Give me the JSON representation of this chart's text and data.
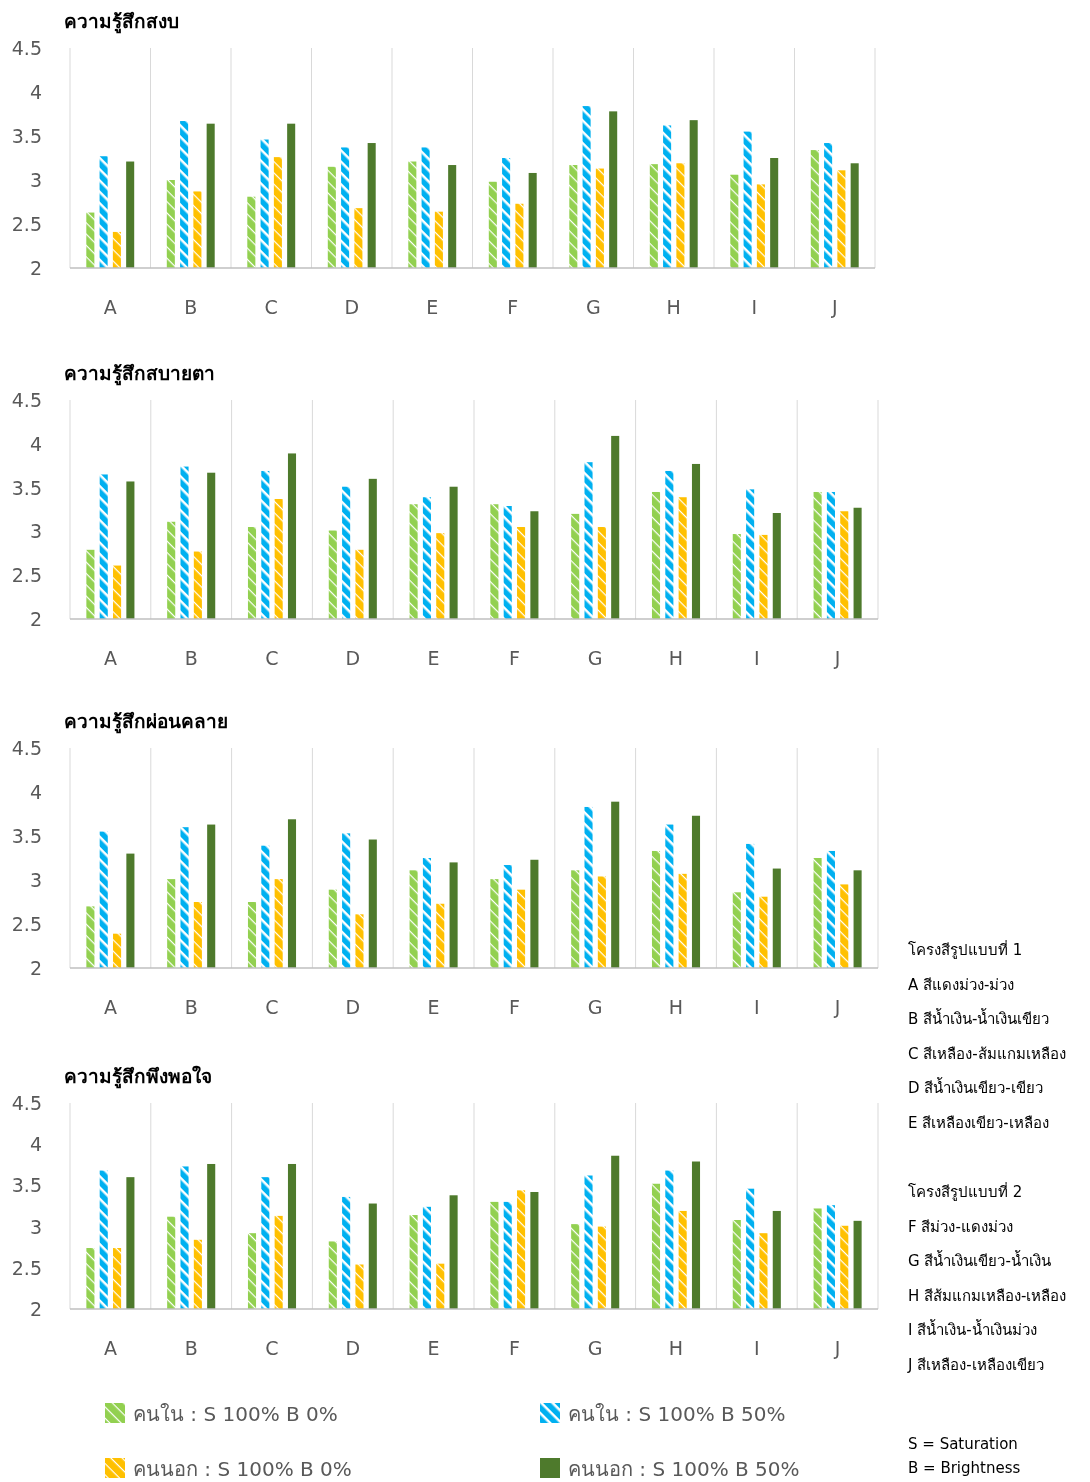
{
  "chart_data": [
    {
      "type": "bar",
      "title": "ความรู้สึกสงบ",
      "categories": [
        "A",
        "B",
        "C",
        "D",
        "E",
        "F",
        "G",
        "H",
        "I",
        "J"
      ],
      "ylim": [
        2,
        4.5
      ],
      "yticks": [
        2,
        2.5,
        3,
        3.5,
        4,
        4.5
      ],
      "grid": "x",
      "legend": false,
      "series": [
        {
          "color": "#92d050",
          "values": [
            2.63,
            3.0,
            2.81,
            3.15,
            3.21,
            2.98,
            3.17,
            3.18,
            3.06,
            3.34
          ]
        },
        {
          "color": "#00b0f0",
          "values": [
            3.27,
            3.67,
            3.46,
            3.37,
            3.37,
            3.25,
            3.84,
            3.62,
            3.55,
            3.42
          ]
        },
        {
          "color": "#ffc000",
          "values": [
            2.41,
            2.87,
            3.26,
            2.68,
            2.64,
            2.73,
            3.13,
            3.19,
            2.95,
            3.11
          ]
        },
        {
          "color": "#4e7a2c",
          "values": [
            3.21,
            3.64,
            3.64,
            3.42,
            3.17,
            3.08,
            3.78,
            3.68,
            3.25,
            3.19
          ]
        }
      ]
    },
    {
      "type": "bar",
      "title": "ความรู้สึกสบายตา",
      "categories": [
        "A",
        "B",
        "C",
        "D",
        "E",
        "F",
        "G",
        "H",
        "I",
        "J"
      ],
      "ylim": [
        2,
        4.5
      ],
      "yticks": [
        2,
        2.5,
        3,
        3.5,
        4,
        4.5
      ],
      "grid": "x",
      "legend": false,
      "series": [
        {
          "color": "#92d050",
          "values": [
            2.79,
            3.11,
            3.05,
            3.01,
            3.31,
            3.31,
            3.2,
            3.45,
            2.97,
            3.45
          ]
        },
        {
          "color": "#00b0f0",
          "values": [
            3.65,
            3.74,
            3.69,
            3.51,
            3.39,
            3.29,
            3.79,
            3.69,
            3.48,
            3.45
          ]
        },
        {
          "color": "#ffc000",
          "values": [
            2.61,
            2.77,
            3.37,
            2.79,
            2.98,
            3.05,
            3.05,
            3.39,
            2.96,
            3.23
          ]
        },
        {
          "color": "#4e7a2c",
          "values": [
            3.57,
            3.67,
            3.89,
            3.6,
            3.51,
            3.23,
            4.09,
            3.77,
            3.21,
            3.27
          ]
        }
      ]
    },
    {
      "type": "bar",
      "title": "ความรู้สึกผ่อนคลาย",
      "categories": [
        "A",
        "B",
        "C",
        "D",
        "E",
        "F",
        "G",
        "H",
        "I",
        "J"
      ],
      "ylim": [
        2,
        4.5
      ],
      "yticks": [
        2,
        2.5,
        3,
        3.5,
        4,
        4.5
      ],
      "grid": "x",
      "legend": false,
      "series": [
        {
          "color": "#92d050",
          "values": [
            2.7,
            3.01,
            2.75,
            2.89,
            3.11,
            3.01,
            3.11,
            3.33,
            2.86,
            3.25
          ]
        },
        {
          "color": "#00b0f0",
          "values": [
            3.55,
            3.6,
            3.39,
            3.53,
            3.25,
            3.17,
            3.83,
            3.63,
            3.41,
            3.33
          ]
        },
        {
          "color": "#ffc000",
          "values": [
            2.39,
            2.75,
            3.01,
            2.61,
            2.73,
            2.89,
            3.04,
            3.07,
            2.81,
            2.95
          ]
        },
        {
          "color": "#4e7a2c",
          "values": [
            3.3,
            3.63,
            3.69,
            3.46,
            3.2,
            3.23,
            3.89,
            3.73,
            3.13,
            3.11
          ]
        }
      ]
    },
    {
      "type": "bar",
      "title": "ความรู้สึกพึงพอใจ",
      "categories": [
        "A",
        "B",
        "C",
        "D",
        "E",
        "F",
        "G",
        "H",
        "I",
        "J"
      ],
      "ylim": [
        2,
        4.5
      ],
      "yticks": [
        2,
        2.5,
        3,
        3.5,
        4,
        4.5
      ],
      "grid": "x",
      "legend": "bottom",
      "series": [
        {
          "name": "คนใน : S 100% B 0%",
          "color": "#92d050",
          "values": [
            2.74,
            3.12,
            2.92,
            2.82,
            3.14,
            3.3,
            3.03,
            3.52,
            3.08,
            3.22
          ]
        },
        {
          "name": "คนใน : S 100% B 50%",
          "color": "#00b0f0",
          "values": [
            3.68,
            3.73,
            3.6,
            3.36,
            3.24,
            3.3,
            3.62,
            3.68,
            3.46,
            3.26
          ]
        },
        {
          "name": "คนนอก : S 100% B 0%",
          "color": "#ffc000",
          "values": [
            2.74,
            2.84,
            3.13,
            2.54,
            2.55,
            3.44,
            3.0,
            3.19,
            2.92,
            3.01
          ]
        },
        {
          "name": "คนนอก : S 100% B 50%",
          "color": "#4e7a2c",
          "values": [
            3.6,
            3.76,
            3.76,
            3.28,
            3.38,
            3.42,
            3.86,
            3.79,
            3.19,
            3.07
          ]
        }
      ],
      "annotations": [
        "โครงสีรูปแบบที่ 1",
        "A  สีแดงม่วง-ม่วง",
        "B  สีน้ำเงิน-น้ำเงินเขียว",
        "C  สีเหลือง-ส้มแกมเหลือง",
        "D  สีน้ำเงินเขียว-เขียว",
        "E  สีเหลืองเขียว-เหลือง",
        "โครงสีรูปแบบที่ 2",
        "F  สีม่วง-แดงม่วง",
        "G  สีน้ำเงินเขียว-น้ำเงิน",
        "H  สีส้มแกมเหลือง-เหลือง",
        "I  สีน้ำเงิน-น้ำเงินม่วง",
        "J  สีเหลือง-เหลืองเขียว",
        "S = Saturation",
        "B = Brightness"
      ]
    }
  ]
}
